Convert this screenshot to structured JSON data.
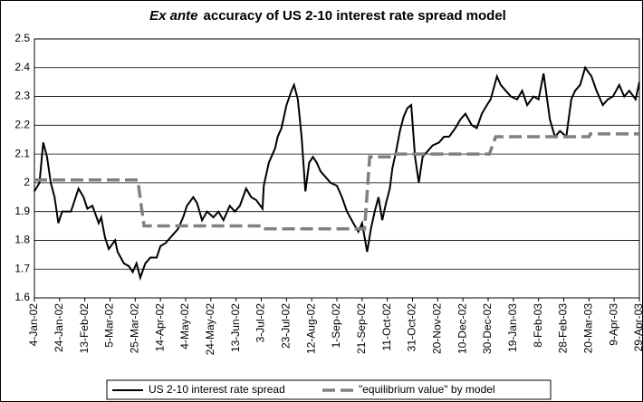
{
  "chart_data": {
    "type": "line",
    "title_emphasis": "Ex ante",
    "title": "accuracy of US 2-10 interest rate spread model",
    "xlim": [
      "2002-01-04",
      "2003-04-29"
    ],
    "xticks": [
      {
        "value": "2002-01-04",
        "label": "4-Jan-02"
      },
      {
        "value": "2002-01-24",
        "label": "24-Jan-02"
      },
      {
        "value": "2002-02-13",
        "label": "13-Feb-02"
      },
      {
        "value": "2002-03-05",
        "label": "5-Mar-02"
      },
      {
        "value": "2002-03-25",
        "label": "25-Mar-02"
      },
      {
        "value": "2002-04-14",
        "label": "14-Apr-02"
      },
      {
        "value": "2002-05-04",
        "label": "4-May-02"
      },
      {
        "value": "2002-05-24",
        "label": "24-May-02"
      },
      {
        "value": "2002-06-13",
        "label": "13-Jun-02"
      },
      {
        "value": "2002-07-03",
        "label": "3-Jul-02"
      },
      {
        "value": "2002-07-23",
        "label": "23-Jul-02"
      },
      {
        "value": "2002-08-12",
        "label": "12-Aug-02"
      },
      {
        "value": "2002-09-01",
        "label": "1-Sep-02"
      },
      {
        "value": "2002-09-21",
        "label": "21-Sep-02"
      },
      {
        "value": "2002-10-11",
        "label": "11-Oct-02"
      },
      {
        "value": "2002-10-31",
        "label": "31-Oct-02"
      },
      {
        "value": "2002-11-20",
        "label": "20-Nov-02"
      },
      {
        "value": "2002-12-10",
        "label": "10-Dec-02"
      },
      {
        "value": "2002-12-30",
        "label": "30-Dec-02"
      },
      {
        "value": "2003-01-19",
        "label": "19-Jan-03"
      },
      {
        "value": "2003-02-08",
        "label": "8-Feb-03"
      },
      {
        "value": "2003-02-28",
        "label": "28-Feb-03"
      },
      {
        "value": "2003-03-20",
        "label": "20-Mar-03"
      },
      {
        "value": "2003-04-09",
        "label": "9-Apr-03"
      },
      {
        "value": "2003-04-29",
        "label": "29-Apr-03"
      }
    ],
    "ylim": [
      1.6,
      2.5
    ],
    "yticks": [
      1.6,
      1.7,
      1.8,
      1.9,
      2,
      2.1,
      2.2,
      2.3,
      2.4,
      2.5
    ],
    "grid": true,
    "legend": "bottom",
    "series": [
      {
        "name": "US 2-10 interest rate spread",
        "color": "#000000",
        "dashed": false,
        "x": [
          "2002-01-04",
          "2002-01-08",
          "2002-01-11",
          "2002-01-14",
          "2002-01-17",
          "2002-01-20",
          "2002-01-23",
          "2002-01-26",
          "2002-01-29",
          "2002-02-02",
          "2002-02-08",
          "2002-02-12",
          "2002-02-15",
          "2002-02-19",
          "2002-02-24",
          "2002-02-26",
          "2002-03-01",
          "2002-03-04",
          "2002-03-09",
          "2002-03-11",
          "2002-03-16",
          "2002-03-20",
          "2002-03-23",
          "2002-03-26",
          "2002-03-29",
          "2002-04-02",
          "2002-04-06",
          "2002-04-11",
          "2002-04-14",
          "2002-04-18",
          "2002-04-24",
          "2002-04-28",
          "2002-05-02",
          "2002-05-05",
          "2002-05-10",
          "2002-05-13",
          "2002-05-17",
          "2002-05-21",
          "2002-05-26",
          "2002-05-30",
          "2002-06-03",
          "2002-06-08",
          "2002-06-12",
          "2002-06-16",
          "2002-06-21",
          "2002-06-25",
          "2002-06-29",
          "2002-07-04",
          "2002-07-05",
          "2002-07-09",
          "2002-07-14",
          "2002-07-16",
          "2002-07-19",
          "2002-07-23",
          "2002-07-27",
          "2002-07-29",
          "2002-08-01",
          "2002-08-04",
          "2002-08-07",
          "2002-08-10",
          "2002-08-13",
          "2002-08-16",
          "2002-08-19",
          "2002-08-23",
          "2002-08-27",
          "2002-09-01",
          "2002-09-05",
          "2002-09-09",
          "2002-09-14",
          "2002-09-18",
          "2002-09-21",
          "2002-09-25",
          "2002-09-28",
          "2002-10-01",
          "2002-10-04",
          "2002-10-07",
          "2002-10-10",
          "2002-10-13",
          "2002-10-15",
          "2002-10-18",
          "2002-10-21",
          "2002-10-24",
          "2002-10-27",
          "2002-10-30",
          "2002-11-02",
          "2002-11-05",
          "2002-11-08",
          "2002-11-12",
          "2002-11-16",
          "2002-11-21",
          "2002-11-25",
          "2002-11-29",
          "2002-12-04",
          "2002-12-08",
          "2002-12-12",
          "2002-12-17",
          "2002-12-21",
          "2002-12-25",
          "2002-12-29",
          "2003-01-01",
          "2003-01-06",
          "2003-01-09",
          "2003-01-13",
          "2003-01-17",
          "2003-01-22",
          "2003-01-26",
          "2003-01-30",
          "2003-02-04",
          "2003-02-08",
          "2003-02-12",
          "2003-02-17",
          "2003-02-21",
          "2003-02-25",
          "2003-03-02",
          "2003-03-06",
          "2003-03-09",
          "2003-03-13",
          "2003-03-17",
          "2003-03-22",
          "2003-03-26",
          "2003-03-31",
          "2003-04-04",
          "2003-04-08",
          "2003-04-13",
          "2003-04-17",
          "2003-04-21",
          "2003-04-26",
          "2003-04-29"
        ],
        "values": [
          1.97,
          2.0,
          2.14,
          2.09,
          2.0,
          1.95,
          1.86,
          1.9,
          1.9,
          1.9,
          1.98,
          1.95,
          1.91,
          1.92,
          1.86,
          1.88,
          1.81,
          1.77,
          1.8,
          1.76,
          1.72,
          1.71,
          1.69,
          1.72,
          1.67,
          1.72,
          1.74,
          1.74,
          1.78,
          1.79,
          1.82,
          1.84,
          1.88,
          1.92,
          1.95,
          1.93,
          1.87,
          1.9,
          1.88,
          1.9,
          1.87,
          1.92,
          1.9,
          1.92,
          1.98,
          1.95,
          1.94,
          1.91,
          1.99,
          2.07,
          2.12,
          2.16,
          2.19,
          2.27,
          2.32,
          2.34,
          2.29,
          2.16,
          1.97,
          2.07,
          2.09,
          2.07,
          2.04,
          2.02,
          2.0,
          1.99,
          1.95,
          1.9,
          1.86,
          1.83,
          1.86,
          1.76,
          1.84,
          1.9,
          1.95,
          1.87,
          1.93,
          1.98,
          2.05,
          2.11,
          2.18,
          2.23,
          2.26,
          2.27,
          2.09,
          2.0,
          2.09,
          2.11,
          2.13,
          2.14,
          2.16,
          2.16,
          2.19,
          2.22,
          2.24,
          2.2,
          2.19,
          2.24,
          2.27,
          2.29,
          2.37,
          2.34,
          2.32,
          2.3,
          2.29,
          2.32,
          2.27,
          2.3,
          2.29,
          2.38,
          2.22,
          2.16,
          2.18,
          2.16,
          2.29,
          2.32,
          2.34,
          2.4,
          2.37,
          2.32,
          2.27,
          2.29,
          2.3,
          2.34,
          2.3,
          2.32,
          2.29,
          2.35
        ]
      },
      {
        "name": "\"equilibrium value\" by model",
        "color": "#808080",
        "dashed": true,
        "x": [
          "2002-01-04",
          "2002-03-27",
          "2002-04-01",
          "2002-07-03",
          "2002-07-04",
          "2002-09-23",
          "2002-09-27",
          "2002-10-15",
          "2002-10-16",
          "2002-12-31",
          "2003-01-05",
          "2003-03-20",
          "2003-03-21",
          "2003-04-29"
        ],
        "values": [
          2.01,
          2.01,
          1.85,
          1.85,
          1.84,
          1.84,
          2.09,
          2.09,
          2.1,
          2.1,
          2.16,
          2.16,
          2.17,
          2.17
        ]
      }
    ]
  }
}
